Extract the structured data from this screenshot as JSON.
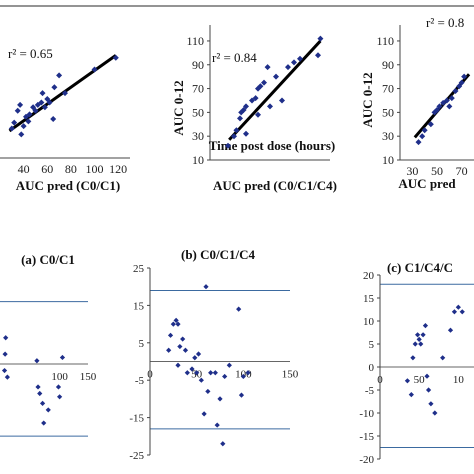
{
  "chart_data": [
    {
      "type": "scatter",
      "title": "",
      "xlabel": "AUC pred (C0/C1)",
      "ylabel": "",
      "annotation": "r² = 0.65",
      "xticks": [
        "40",
        "60",
        "80",
        "100",
        "120"
      ],
      "yticks": [],
      "xlim": [
        20,
        130
      ],
      "ylim": [
        15,
        115
      ],
      "points": [
        [
          30,
          40
        ],
        [
          32,
          45
        ],
        [
          35,
          55
        ],
        [
          37,
          60
        ],
        [
          38,
          35
        ],
        [
          40,
          42
        ],
        [
          42,
          50
        ],
        [
          44,
          46
        ],
        [
          45,
          52
        ],
        [
          48,
          58
        ],
        [
          50,
          55
        ],
        [
          52,
          60
        ],
        [
          55,
          62
        ],
        [
          56,
          70
        ],
        [
          58,
          58
        ],
        [
          60,
          65
        ],
        [
          62,
          62
        ],
        [
          65,
          48
        ],
        [
          66,
          75
        ],
        [
          70,
          85
        ],
        [
          75,
          70
        ],
        [
          100,
          90
        ],
        [
          118,
          100
        ]
      ],
      "fit": [
        [
          28,
          38
        ],
        [
          118,
          102
        ]
      ]
    },
    {
      "type": "scatter",
      "title": "",
      "xlabel": "AUC pred (C0/C1/C4)",
      "ylabel": "AUC 0-12",
      "annotation": "r² = 0.84",
      "overlay_text": "Time post dose (hours)",
      "xticks": [],
      "yticks": [
        "10",
        "30",
        "50",
        "70",
        "90",
        "110"
      ],
      "xlim": [
        20,
        120
      ],
      "ylim": [
        10,
        115
      ],
      "points": [
        [
          35,
          22
        ],
        [
          40,
          30
        ],
        [
          42,
          35
        ],
        [
          45,
          45
        ],
        [
          46,
          50
        ],
        [
          48,
          52
        ],
        [
          50,
          55
        ],
        [
          50,
          32
        ],
        [
          55,
          60
        ],
        [
          58,
          62
        ],
        [
          60,
          70
        ],
        [
          60,
          48
        ],
        [
          62,
          72
        ],
        [
          65,
          75
        ],
        [
          68,
          88
        ],
        [
          70,
          55
        ],
        [
          75,
          80
        ],
        [
          80,
          60
        ],
        [
          85,
          88
        ],
        [
          90,
          92
        ],
        [
          95,
          95
        ],
        [
          110,
          98
        ],
        [
          112,
          112
        ]
      ],
      "fit": [
        [
          36,
          27
        ],
        [
          112,
          110
        ]
      ]
    },
    {
      "type": "scatter",
      "title": "",
      "xlabel": "AUC pred",
      "ylabel": "AUC 0-12",
      "annotation": "r² = 0.8",
      "xticks": [
        "30",
        "50",
        "70"
      ],
      "yticks": [
        "10",
        "30",
        "50",
        "70",
        "90",
        "110"
      ],
      "xlim": [
        20,
        80
      ],
      "ylim": [
        10,
        115
      ],
      "points": [
        [
          35,
          25
        ],
        [
          38,
          30
        ],
        [
          40,
          35
        ],
        [
          45,
          40
        ],
        [
          48,
          50
        ],
        [
          50,
          52
        ],
        [
          52,
          55
        ],
        [
          55,
          58
        ],
        [
          58,
          60
        ],
        [
          60,
          55
        ],
        [
          62,
          62
        ],
        [
          65,
          68
        ],
        [
          68,
          72
        ],
        [
          70,
          75
        ],
        [
          72,
          80
        ]
      ],
      "fit": [
        [
          32,
          29
        ],
        [
          76,
          82
        ]
      ]
    },
    {
      "type": "scatter",
      "title": "(a) C0/C1",
      "xlabel": "",
      "ylabel": "",
      "xticks": [
        "100",
        "150"
      ],
      "yticks": [],
      "xlim": [
        -5,
        150
      ],
      "ylim": [
        -25,
        25
      ],
      "hlines": [
        0,
        19,
        -22
      ],
      "points": [
        [
          4,
          3
        ],
        [
          5,
          8
        ],
        [
          3,
          -2
        ],
        [
          8,
          -4
        ],
        [
          60,
          1
        ],
        [
          62,
          -7
        ],
        [
          65,
          -9
        ],
        [
          70,
          -12
        ],
        [
          72,
          -18
        ],
        [
          80,
          -14
        ],
        [
          98,
          -7
        ],
        [
          100,
          -10
        ],
        [
          105,
          2
        ]
      ],
      "fit": null
    },
    {
      "type": "scatter",
      "title": "(b) C0/C1/C4",
      "xlabel": "",
      "ylabel": "",
      "xticks": [
        "0",
        "50",
        "100",
        "150"
      ],
      "yticks": [
        "25",
        "15",
        "5",
        "-5",
        "-15",
        "-25"
      ],
      "xlim": [
        0,
        150
      ],
      "ylim": [
        -25,
        25
      ],
      "hlines": [
        0,
        19,
        -18
      ],
      "points": [
        [
          20,
          3
        ],
        [
          22,
          7
        ],
        [
          25,
          10
        ],
        [
          28,
          11
        ],
        [
          30,
          10
        ],
        [
          30,
          -1
        ],
        [
          32,
          4
        ],
        [
          35,
          6
        ],
        [
          38,
          3
        ],
        [
          40,
          -3
        ],
        [
          45,
          -2
        ],
        [
          48,
          1
        ],
        [
          50,
          -3
        ],
        [
          52,
          2
        ],
        [
          55,
          -5
        ],
        [
          58,
          -14
        ],
        [
          60,
          20
        ],
        [
          62,
          -8
        ],
        [
          65,
          -3
        ],
        [
          70,
          -3
        ],
        [
          72,
          -17
        ],
        [
          75,
          -10
        ],
        [
          78,
          -22
        ],
        [
          80,
          -4
        ],
        [
          85,
          -1
        ],
        [
          95,
          14
        ],
        [
          98,
          -9
        ],
        [
          100,
          -4
        ],
        [
          105,
          -3
        ]
      ],
      "fit": null
    },
    {
      "type": "scatter",
      "title": "(c) C1/C4/C",
      "xlabel": "",
      "ylabel": "",
      "xticks": [
        "0",
        "50",
        "10"
      ],
      "yticks": [
        "20",
        "15",
        "10",
        "5",
        "0",
        "-5",
        "-10",
        "-15",
        "-20"
      ],
      "xlim": [
        0,
        120
      ],
      "ylim": [
        -20,
        20
      ],
      "hlines": [
        0,
        18,
        -17.5
      ],
      "points": [
        [
          35,
          -3
        ],
        [
          40,
          -6
        ],
        [
          42,
          2
        ],
        [
          45,
          5
        ],
        [
          48,
          7
        ],
        [
          50,
          6
        ],
        [
          52,
          5
        ],
        [
          55,
          7
        ],
        [
          58,
          9
        ],
        [
          60,
          -2
        ],
        [
          62,
          -5
        ],
        [
          65,
          -8
        ],
        [
          70,
          -10
        ],
        [
          80,
          2
        ],
        [
          90,
          8
        ],
        [
          95,
          12
        ],
        [
          100,
          13
        ],
        [
          105,
          12
        ]
      ],
      "fit": null
    }
  ]
}
